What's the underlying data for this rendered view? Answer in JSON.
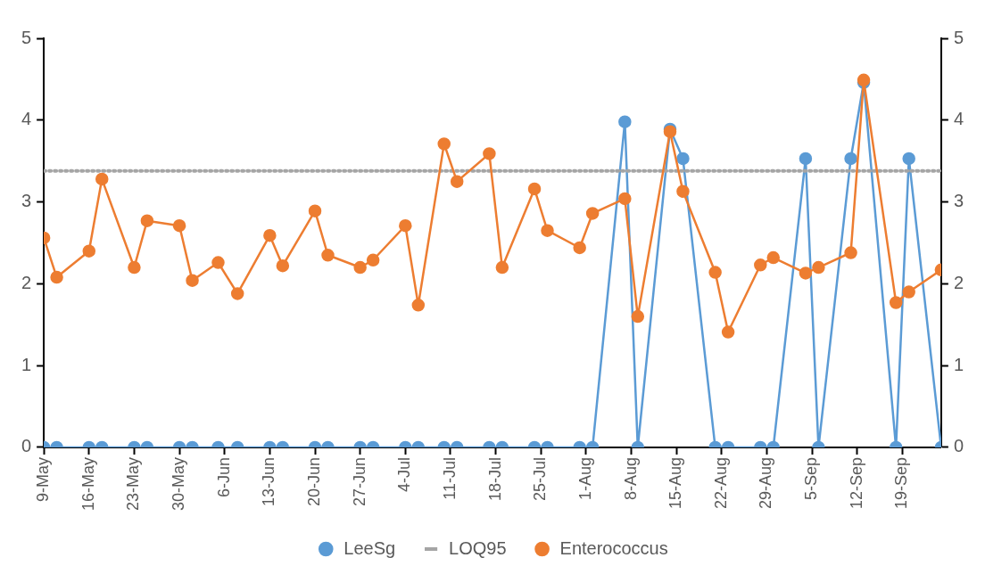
{
  "chart_data": {
    "type": "line",
    "x": [
      "--05-09",
      "--05-11",
      "--05-16",
      "--05-18",
      "--05-23",
      "--05-25",
      "--05-30",
      "--06-01",
      "--06-05",
      "--06-08",
      "--06-13",
      "--06-15",
      "--06-20",
      "--06-22",
      "--06-27",
      "--06-29",
      "--07-04",
      "--07-06",
      "--07-10",
      "--07-12",
      "--07-17",
      "--07-19",
      "--07-24",
      "--07-26",
      "--07-31",
      "--08-02",
      "--08-07",
      "--08-09",
      "--08-14",
      "--08-16",
      "--08-21",
      "--08-23",
      "--08-28",
      "--08-30",
      "--09-04",
      "--09-06",
      "--09-11",
      "--09-13",
      "--09-18",
      "--09-20",
      "--09-25"
    ],
    "series": [
      {
        "name": "LeeSg",
        "color": "#5b9bd5",
        "values": [
          0,
          0,
          0,
          0,
          0,
          0,
          0,
          0,
          0,
          0,
          0,
          0,
          0,
          0,
          0,
          0,
          0,
          0,
          0,
          0,
          0,
          0,
          0,
          0,
          0,
          0,
          3.98,
          0,
          3.89,
          3.53,
          0,
          0,
          0,
          0,
          3.53,
          0,
          3.53,
          4.46,
          0,
          3.53,
          0
        ]
      },
      {
        "name": "LOQ95",
        "color": "#a5a5a5",
        "x": [
          "--05-09",
          "--09-25"
        ],
        "values": [
          3.38,
          3.38
        ],
        "line_style": "dotted",
        "marker": "none"
      },
      {
        "name": "Enterococcus",
        "color": "#ed7d31",
        "values": [
          2.56,
          2.08,
          2.4,
          3.28,
          2.2,
          2.77,
          2.71,
          2.04,
          2.26,
          1.88,
          2.59,
          2.22,
          2.89,
          2.35,
          2.2,
          2.29,
          2.71,
          1.74,
          3.71,
          3.25,
          3.59,
          2.2,
          3.16,
          2.65,
          2.44,
          2.86,
          3.04,
          1.6,
          3.86,
          3.13,
          2.14,
          1.41,
          2.23,
          2.32,
          2.13,
          2.2,
          2.38,
          4.49,
          1.77,
          1.9,
          2.17
        ]
      }
    ],
    "xlim": [
      "--05-09",
      "--09-25"
    ],
    "xticks": [
      {
        "value": "--05-09",
        "label": "9-May"
      },
      {
        "value": "--05-16",
        "label": "16-May"
      },
      {
        "value": "--05-23",
        "label": "23-May"
      },
      {
        "value": "--05-30",
        "label": "30-May"
      },
      {
        "value": "--06-06",
        "label": "6-Jun"
      },
      {
        "value": "--06-13",
        "label": "13-Jun"
      },
      {
        "value": "--06-20",
        "label": "20-Jun"
      },
      {
        "value": "--06-27",
        "label": "27-Jun"
      },
      {
        "value": "--07-04",
        "label": "4-Jul"
      },
      {
        "value": "--07-11",
        "label": "11-Jul"
      },
      {
        "value": "--07-18",
        "label": "18-Jul"
      },
      {
        "value": "--07-25",
        "label": "25-Jul"
      },
      {
        "value": "--08-01",
        "label": "1-Aug"
      },
      {
        "value": "--08-08",
        "label": "8-Aug"
      },
      {
        "value": "--08-15",
        "label": "15-Aug"
      },
      {
        "value": "--08-22",
        "label": "22-Aug"
      },
      {
        "value": "--08-29",
        "label": "29-Aug"
      },
      {
        "value": "--09-05",
        "label": "5-Sep"
      },
      {
        "value": "--09-12",
        "label": "12-Sep"
      },
      {
        "value": "--09-19",
        "label": "19-Sep"
      }
    ],
    "ylim": [
      0,
      5
    ],
    "yticks": [
      0,
      1,
      2,
      3,
      4,
      5
    ],
    "y2lim": [
      0,
      5
    ],
    "y2ticks": [
      0,
      1,
      2,
      3,
      4,
      5
    ],
    "marker": "circle",
    "line_style": "solid",
    "legend": "bottom"
  }
}
